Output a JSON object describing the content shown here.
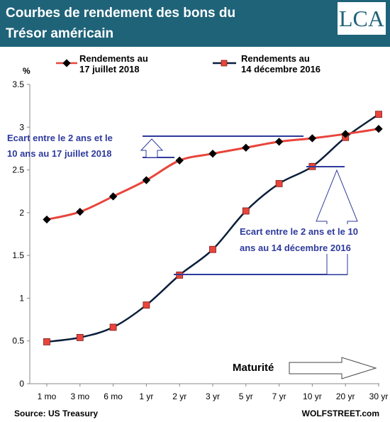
{
  "header": {
    "title_line1": "Courbes de rendement des bons du",
    "title_line2": "Trésor américain",
    "logo_text": "LCA",
    "background_color": "#1f6379"
  },
  "legend": {
    "series_2018_line1": "Rendements au",
    "series_2018_line2": "17 juillet 2018",
    "series_2016_line1": "Rendements au",
    "series_2016_line2": "14 décembre 2016"
  },
  "annotations": {
    "spread_2018_line1": "Ecart entre le 2 ans et le",
    "spread_2018_line2": "10 ans au 17 juillet 2018",
    "spread_2016_line1": "Ecart entre le 2 ans et le 10",
    "spread_2016_line2": "ans au 14 décembre 2016",
    "maturity_label": "Maturité"
  },
  "footer": {
    "source": "Source: US Treasury",
    "credit": "WOLFSTREET.com"
  },
  "chart_data": {
    "type": "line",
    "ylabel": "%",
    "xlabel": "Maturité",
    "categories": [
      "1 mo",
      "3 mo",
      "6 mo",
      "1 yr",
      "2 yr",
      "3 yr",
      "5 yr",
      "7 yr",
      "10 yr",
      "20 yr",
      "30 yr"
    ],
    "ylim": [
      0,
      3.5
    ],
    "yticks": [
      "0",
      "0.5",
      "1",
      "1.5",
      "2",
      "2.5",
      "3",
      "3.5"
    ],
    "grid": false,
    "legend_position": "top",
    "series": [
      {
        "name": "Rendements au 17 juillet 2018",
        "color": "#e8453c",
        "marker": "diamond",
        "values": [
          1.92,
          2.01,
          2.19,
          2.38,
          2.61,
          2.69,
          2.76,
          2.83,
          2.87,
          2.92,
          2.98
        ]
      },
      {
        "name": "Rendements au 14 décembre 2016",
        "color": "#0b1f3a",
        "marker": "square",
        "values": [
          0.49,
          0.54,
          0.66,
          0.92,
          1.27,
          1.57,
          2.02,
          2.34,
          2.54,
          2.88,
          3.15
        ]
      }
    ]
  }
}
